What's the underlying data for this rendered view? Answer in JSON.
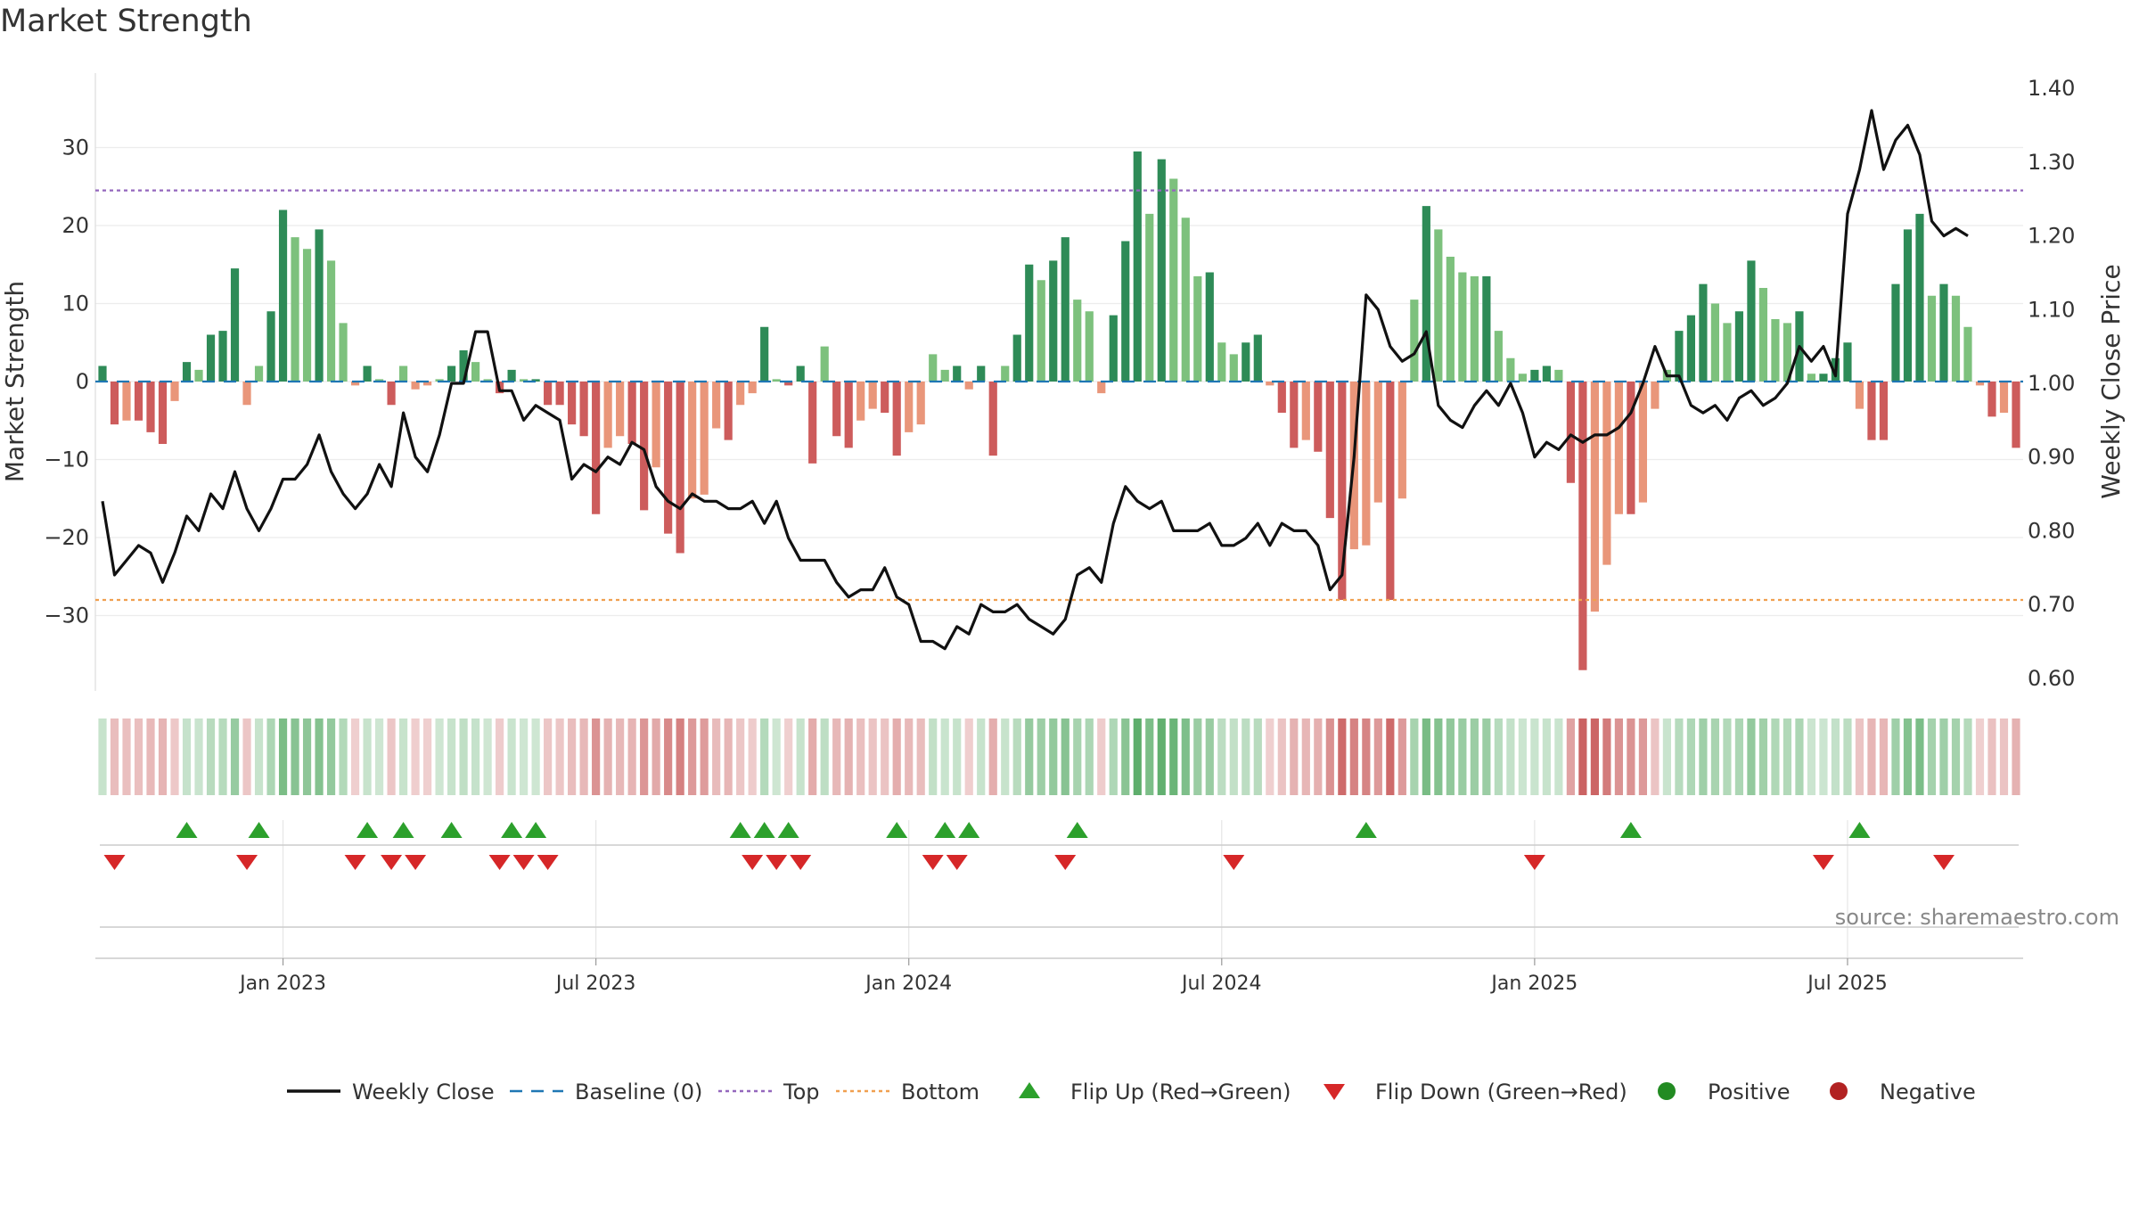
{
  "chart_data": {
    "type": "bar",
    "title": "Market Strength",
    "ylabel_left": "Market Strength",
    "ylabel_right": "Weekly Close Price",
    "source": "source: sharemaestro.com",
    "ylim_left": [
      -40,
      40
    ],
    "ylim_right": [
      0.57,
      1.42
    ],
    "yticks_left": [
      30,
      20,
      10,
      0,
      -10,
      -20,
      -30
    ],
    "ytick_labels_left": [
      "30",
      "20",
      "10",
      "0",
      "−10",
      "−20",
      "−30"
    ],
    "yticks_right": [
      1.4,
      1.3,
      1.2,
      1.1,
      1.0,
      0.9,
      0.8,
      0.7,
      0.6
    ],
    "ytick_labels_right": [
      "1.40",
      "1.30",
      "1.20",
      "1.10",
      "1.00",
      "0.90",
      "0.80",
      "0.70",
      "0.60"
    ],
    "x_dates": [
      "Jan 2023",
      "Jul 2023",
      "Jan 2024",
      "Jul 2024",
      "Jan 2025",
      "Jul 2025"
    ],
    "x_tick_week_index": [
      15,
      41,
      67,
      93,
      119,
      145
    ],
    "top_line": 24.5,
    "bottom_line": -28,
    "strength": [
      2,
      -5.5,
      -5,
      -5,
      -6.5,
      -8,
      -2.5,
      2.5,
      1.5,
      6,
      6.5,
      14.5,
      -3,
      2,
      9,
      22,
      18.5,
      17,
      19.5,
      15.5,
      7.5,
      -0.5,
      2,
      0.3,
      -3,
      2,
      -1,
      -0.5,
      0.3,
      2,
      4,
      2.5,
      0.3,
      -1.5,
      1.5,
      0.3,
      0.3,
      -3,
      -3,
      -5.5,
      -7,
      -17,
      -8.5,
      -7,
      -8,
      -16.5,
      -11,
      -19.5,
      -22,
      -15,
      -14.5,
      -6,
      -7.5,
      -3,
      -1.5,
      7,
      0.3,
      -0.5,
      2,
      -10.5,
      4.5,
      -7,
      -8.5,
      -5,
      -3.5,
      -4,
      -9.5,
      -6.5,
      -5.5,
      3.5,
      1.5,
      2,
      -1,
      2,
      -9.5,
      2,
      6,
      15,
      13,
      15.5,
      18.5,
      10.5,
      9,
      -1.5,
      8.5,
      18,
      29.5,
      21.5,
      28.5,
      26,
      21,
      13.5,
      14,
      5,
      3.5,
      5,
      6,
      -0.5,
      -4,
      -8.5,
      -7.5,
      -9,
      -17.5,
      -28,
      -21.5,
      -21,
      -15.5,
      -28,
      -15,
      10.5,
      22.5,
      19.5,
      16,
      14,
      13.5,
      13.5,
      6.5,
      3,
      1,
      1.5,
      2,
      1.5,
      -13,
      -37,
      -29.5,
      -23.5,
      -17,
      -17,
      -15.5,
      -3.5,
      1.5,
      6.5,
      8.5,
      12.5,
      10,
      7.5,
      9,
      15.5,
      12,
      8,
      7.5,
      9,
      1,
      1,
      3,
      5,
      -3.5,
      -7.5,
      -7.5,
      12.5,
      19.5,
      21.5,
      11,
      12.5,
      11,
      7,
      -0.5,
      -4.5,
      -4,
      -8.5
    ],
    "weekly_close": [
      0.84,
      0.74,
      0.76,
      0.78,
      0.77,
      0.73,
      0.77,
      0.82,
      0.8,
      0.85,
      0.83,
      0.88,
      0.83,
      0.8,
      0.83,
      0.87,
      0.87,
      0.89,
      0.93,
      0.88,
      0.85,
      0.83,
      0.85,
      0.89,
      0.86,
      0.96,
      0.9,
      0.88,
      0.93,
      1.0,
      1.0,
      1.07,
      1.07,
      0.99,
      0.99,
      0.95,
      0.97,
      0.96,
      0.95,
      0.87,
      0.89,
      0.88,
      0.9,
      0.89,
      0.92,
      0.91,
      0.86,
      0.84,
      0.83,
      0.85,
      0.84,
      0.84,
      0.83,
      0.83,
      0.84,
      0.81,
      0.84,
      0.79,
      0.76,
      0.76,
      0.76,
      0.73,
      0.71,
      0.72,
      0.72,
      0.75,
      0.71,
      0.7,
      0.65,
      0.65,
      0.64,
      0.67,
      0.66,
      0.7,
      0.69,
      0.69,
      0.7,
      0.68,
      0.67,
      0.66,
      0.68,
      0.74,
      0.75,
      0.73,
      0.81,
      0.86,
      0.84,
      0.83,
      0.84,
      0.8,
      0.8,
      0.8,
      0.81,
      0.78,
      0.78,
      0.79,
      0.81,
      0.78,
      0.81,
      0.8,
      0.8,
      0.78,
      0.72,
      0.74,
      0.9,
      1.12,
      1.1,
      1.05,
      1.03,
      1.04,
      1.07,
      0.97,
      0.95,
      0.94,
      0.97,
      0.99,
      0.97,
      1.0,
      0.96,
      0.9,
      0.92,
      0.91,
      0.93,
      0.92,
      0.93,
      0.93,
      0.94,
      0.96,
      1.0,
      1.05,
      1.01,
      1.01,
      0.97,
      0.96,
      0.97,
      0.95,
      0.98,
      0.99,
      0.97,
      0.98,
      1.0,
      1.05,
      1.03,
      1.05,
      1.01,
      1.23,
      1.29,
      1.37,
      1.29,
      1.33,
      1.35,
      1.31,
      1.22,
      1.2,
      1.21,
      1.2
    ],
    "flip_up_weeks": [
      7,
      13,
      22,
      25,
      29,
      34,
      36,
      53,
      55,
      57,
      66,
      70,
      72,
      81,
      105,
      127,
      146
    ],
    "flip_down_weeks": [
      1,
      12,
      21,
      24,
      26,
      33,
      35,
      37,
      54,
      56,
      58,
      69,
      71,
      80,
      94,
      119,
      143,
      153
    ],
    "legend": [
      {
        "label": "Weekly Close",
        "kind": "line"
      },
      {
        "label": "Baseline (0)",
        "kind": "dash"
      },
      {
        "label": "Top",
        "kind": "dot-purple"
      },
      {
        "label": "Bottom",
        "kind": "dot-orange"
      },
      {
        "label": "Flip Up (Red→Green)",
        "kind": "tri-up"
      },
      {
        "label": "Flip Down (Green→Red)",
        "kind": "tri-down"
      },
      {
        "label": "Positive",
        "kind": "dot-green"
      },
      {
        "label": "Negative",
        "kind": "dot-red"
      }
    ],
    "colors": {
      "pos_strong": "#2e8b57",
      "pos_light": "#7dc17d",
      "neg_strong": "#cd5c5c",
      "neg_light": "#e9967a",
      "close_line": "#111111",
      "baseline": "#1f77b4",
      "top": "#9467bd",
      "bottom": "#f0a050",
      "flip_up": "#2ca02c",
      "flip_down": "#d62728",
      "positive": "#228b22",
      "negative": "#b22222"
    }
  }
}
